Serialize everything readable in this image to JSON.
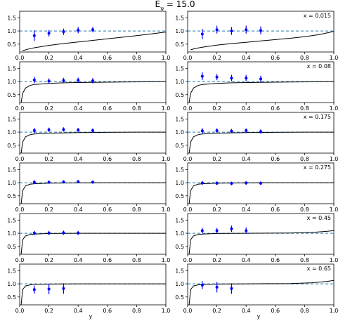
{
  "figure": {
    "title": "E_ν = 15.0",
    "xlabel": "y"
  },
  "chart_data": {
    "type": "scatter",
    "title": "E_ν = 15.0",
    "xlabel": "y",
    "xlim": [
      0,
      1.0
    ],
    "ylim": [
      0.2,
      1.75
    ],
    "xticks": [
      "0.0",
      "0.2",
      "0.4",
      "0.6",
      "0.8",
      "1.0"
    ],
    "yticks": [
      "0.5",
      "1.0",
      "1.5"
    ],
    "reference_line": 1.0,
    "colors": {
      "points": "#0000ff",
      "curve": "#000000",
      "reference": "#1f77b4"
    },
    "panels": [
      {
        "annotation": "",
        "curve": [
          [
            0.02,
            0.25
          ],
          [
            0.05,
            0.3
          ],
          [
            0.1,
            0.36
          ],
          [
            0.2,
            0.45
          ],
          [
            0.3,
            0.52
          ],
          [
            0.4,
            0.58
          ],
          [
            0.5,
            0.64
          ],
          [
            0.6,
            0.7
          ],
          [
            0.7,
            0.76
          ],
          [
            0.8,
            0.82
          ],
          [
            0.9,
            0.89
          ],
          [
            1.0,
            0.96
          ]
        ],
        "points": [
          {
            "x": 0.1,
            "y": 0.82,
            "err": 0.2
          },
          {
            "x": 0.2,
            "y": 0.91,
            "err": 0.12
          },
          {
            "x": 0.3,
            "y": 0.97,
            "err": 0.12
          },
          {
            "x": 0.4,
            "y": 1.03,
            "err": 0.12
          },
          {
            "x": 0.5,
            "y": 1.05,
            "err": 0.1
          }
        ]
      },
      {
        "annotation": "x = 0.015",
        "curve": [
          [
            0.02,
            0.28
          ],
          [
            0.05,
            0.33
          ],
          [
            0.1,
            0.38
          ],
          [
            0.2,
            0.46
          ],
          [
            0.3,
            0.52
          ],
          [
            0.4,
            0.57
          ],
          [
            0.5,
            0.62
          ],
          [
            0.6,
            0.67
          ],
          [
            0.7,
            0.72
          ],
          [
            0.8,
            0.78
          ],
          [
            0.9,
            0.86
          ],
          [
            1.0,
            0.98
          ]
        ],
        "points": [
          {
            "x": 0.1,
            "y": 0.88,
            "err": 0.2
          },
          {
            "x": 0.2,
            "y": 1.05,
            "err": 0.15
          },
          {
            "x": 0.3,
            "y": 1.0,
            "err": 0.15
          },
          {
            "x": 0.4,
            "y": 1.05,
            "err": 0.15
          },
          {
            "x": 0.5,
            "y": 1.02,
            "err": 0.15
          }
        ]
      },
      {
        "annotation": "",
        "curve": [
          [
            0.01,
            0.2
          ],
          [
            0.02,
            0.55
          ],
          [
            0.04,
            0.75
          ],
          [
            0.07,
            0.85
          ],
          [
            0.1,
            0.89
          ],
          [
            0.2,
            0.93
          ],
          [
            0.3,
            0.95
          ],
          [
            0.5,
            0.97
          ],
          [
            0.7,
            0.98
          ],
          [
            0.9,
            0.99
          ],
          [
            1.0,
            1.0
          ]
        ],
        "points": [
          {
            "x": 0.1,
            "y": 1.06,
            "err": 0.12
          },
          {
            "x": 0.2,
            "y": 1.02,
            "err": 0.1
          },
          {
            "x": 0.3,
            "y": 1.04,
            "err": 0.1
          },
          {
            "x": 0.4,
            "y": 1.05,
            "err": 0.1
          },
          {
            "x": 0.5,
            "y": 1.03,
            "err": 0.1
          }
        ]
      },
      {
        "annotation": "x = 0.08",
        "curve": [
          [
            0.01,
            0.2
          ],
          [
            0.02,
            0.55
          ],
          [
            0.04,
            0.75
          ],
          [
            0.07,
            0.85
          ],
          [
            0.1,
            0.89
          ],
          [
            0.2,
            0.93
          ],
          [
            0.3,
            0.95
          ],
          [
            0.5,
            0.97
          ],
          [
            0.7,
            0.98
          ],
          [
            0.9,
            0.99
          ],
          [
            1.0,
            1.0
          ]
        ],
        "points": [
          {
            "x": 0.1,
            "y": 1.2,
            "err": 0.15
          },
          {
            "x": 0.2,
            "y": 1.17,
            "err": 0.12
          },
          {
            "x": 0.3,
            "y": 1.13,
            "err": 0.12
          },
          {
            "x": 0.4,
            "y": 1.13,
            "err": 0.12
          },
          {
            "x": 0.5,
            "y": 1.1,
            "err": 0.12
          }
        ]
      },
      {
        "annotation": "",
        "curve": [
          [
            0.01,
            0.2
          ],
          [
            0.02,
            0.62
          ],
          [
            0.04,
            0.82
          ],
          [
            0.07,
            0.9
          ],
          [
            0.1,
            0.93
          ],
          [
            0.2,
            0.96
          ],
          [
            0.4,
            0.98
          ],
          [
            0.6,
            0.99
          ],
          [
            0.8,
            1.0
          ],
          [
            1.0,
            1.0
          ]
        ],
        "points": [
          {
            "x": 0.1,
            "y": 1.06,
            "err": 0.1
          },
          {
            "x": 0.2,
            "y": 1.09,
            "err": 0.08
          },
          {
            "x": 0.3,
            "y": 1.1,
            "err": 0.08
          },
          {
            "x": 0.4,
            "y": 1.08,
            "err": 0.08
          },
          {
            "x": 0.5,
            "y": 1.06,
            "err": 0.08
          }
        ]
      },
      {
        "annotation": "x = 0.175",
        "curve": [
          [
            0.01,
            0.2
          ],
          [
            0.02,
            0.62
          ],
          [
            0.04,
            0.82
          ],
          [
            0.07,
            0.9
          ],
          [
            0.1,
            0.93
          ],
          [
            0.2,
            0.96
          ],
          [
            0.4,
            0.98
          ],
          [
            0.6,
            0.99
          ],
          [
            0.8,
            1.0
          ],
          [
            1.0,
            1.0
          ]
        ],
        "points": [
          {
            "x": 0.1,
            "y": 1.05,
            "err": 0.1
          },
          {
            "x": 0.2,
            "y": 1.06,
            "err": 0.08
          },
          {
            "x": 0.3,
            "y": 1.04,
            "err": 0.08
          },
          {
            "x": 0.4,
            "y": 1.06,
            "err": 0.08
          },
          {
            "x": 0.5,
            "y": 1.02,
            "err": 0.08
          }
        ]
      },
      {
        "annotation": "",
        "curve": [
          [
            0.01,
            0.2
          ],
          [
            0.02,
            0.7
          ],
          [
            0.04,
            0.88
          ],
          [
            0.07,
            0.94
          ],
          [
            0.1,
            0.96
          ],
          [
            0.2,
            0.98
          ],
          [
            0.4,
            0.99
          ],
          [
            0.6,
            1.0
          ],
          [
            1.0,
            1.0
          ]
        ],
        "points": [
          {
            "x": 0.1,
            "y": 1.02,
            "err": 0.07
          },
          {
            "x": 0.2,
            "y": 1.02,
            "err": 0.06
          },
          {
            "x": 0.3,
            "y": 1.03,
            "err": 0.06
          },
          {
            "x": 0.4,
            "y": 1.04,
            "err": 0.06
          },
          {
            "x": 0.5,
            "y": 1.02,
            "err": 0.06
          }
        ]
      },
      {
        "annotation": "x = 0.275",
        "curve": [
          [
            0.01,
            0.2
          ],
          [
            0.02,
            0.7
          ],
          [
            0.04,
            0.88
          ],
          [
            0.07,
            0.94
          ],
          [
            0.1,
            0.96
          ],
          [
            0.2,
            0.98
          ],
          [
            0.4,
            0.99
          ],
          [
            0.6,
            1.0
          ],
          [
            1.0,
            1.0
          ]
        ],
        "points": [
          {
            "x": 0.1,
            "y": 0.99,
            "err": 0.07
          },
          {
            "x": 0.2,
            "y": 0.98,
            "err": 0.07
          },
          {
            "x": 0.3,
            "y": 0.97,
            "err": 0.07
          },
          {
            "x": 0.4,
            "y": 0.99,
            "err": 0.07
          },
          {
            "x": 0.5,
            "y": 0.98,
            "err": 0.07
          }
        ]
      },
      {
        "annotation": "",
        "curve": [
          [
            0.01,
            0.2
          ],
          [
            0.02,
            0.75
          ],
          [
            0.04,
            0.9
          ],
          [
            0.07,
            0.95
          ],
          [
            0.1,
            0.97
          ],
          [
            0.2,
            0.99
          ],
          [
            0.4,
            1.0
          ],
          [
            1.0,
            1.0
          ]
        ],
        "points": [
          {
            "x": 0.1,
            "y": 1.01,
            "err": 0.08
          },
          {
            "x": 0.2,
            "y": 1.01,
            "err": 0.08
          },
          {
            "x": 0.3,
            "y": 1.02,
            "err": 0.08
          },
          {
            "x": 0.4,
            "y": 1.01,
            "err": 0.08
          }
        ]
      },
      {
        "annotation": "x = 0.45",
        "curve": [
          [
            0.01,
            0.2
          ],
          [
            0.02,
            0.75
          ],
          [
            0.04,
            0.9
          ],
          [
            0.07,
            0.95
          ],
          [
            0.1,
            0.97
          ],
          [
            0.2,
            0.99
          ],
          [
            0.4,
            1.0
          ],
          [
            0.7,
            1.01
          ],
          [
            0.85,
            1.03
          ],
          [
            0.95,
            1.07
          ],
          [
            1.0,
            1.1
          ]
        ],
        "points": [
          {
            "x": 0.1,
            "y": 1.1,
            "err": 0.1
          },
          {
            "x": 0.2,
            "y": 1.1,
            "err": 0.1
          },
          {
            "x": 0.3,
            "y": 1.17,
            "err": 0.12
          },
          {
            "x": 0.4,
            "y": 1.1,
            "err": 0.12
          }
        ]
      },
      {
        "annotation": "",
        "curve": [
          [
            0.01,
            0.2
          ],
          [
            0.02,
            0.78
          ],
          [
            0.04,
            0.92
          ],
          [
            0.07,
            0.96
          ],
          [
            0.1,
            0.98
          ],
          [
            0.2,
            0.99
          ],
          [
            0.4,
            1.0
          ],
          [
            1.0,
            1.0
          ]
        ],
        "points": [
          {
            "x": 0.1,
            "y": 0.78,
            "err": 0.15
          },
          {
            "x": 0.2,
            "y": 0.8,
            "err": 0.2
          },
          {
            "x": 0.3,
            "y": 0.82,
            "err": 0.2
          }
        ]
      },
      {
        "annotation": "x = 0.65",
        "curve": [
          [
            0.01,
            0.2
          ],
          [
            0.02,
            0.78
          ],
          [
            0.04,
            0.92
          ],
          [
            0.07,
            0.96
          ],
          [
            0.1,
            0.98
          ],
          [
            0.2,
            0.99
          ],
          [
            0.4,
            1.0
          ],
          [
            0.7,
            1.01
          ],
          [
            0.85,
            1.04
          ],
          [
            0.95,
            1.09
          ],
          [
            1.0,
            1.13
          ]
        ],
        "points": [
          {
            "x": 0.1,
            "y": 0.95,
            "err": 0.15
          },
          {
            "x": 0.2,
            "y": 0.87,
            "err": 0.2
          },
          {
            "x": 0.3,
            "y": 0.82,
            "err": 0.2
          }
        ]
      }
    ]
  }
}
